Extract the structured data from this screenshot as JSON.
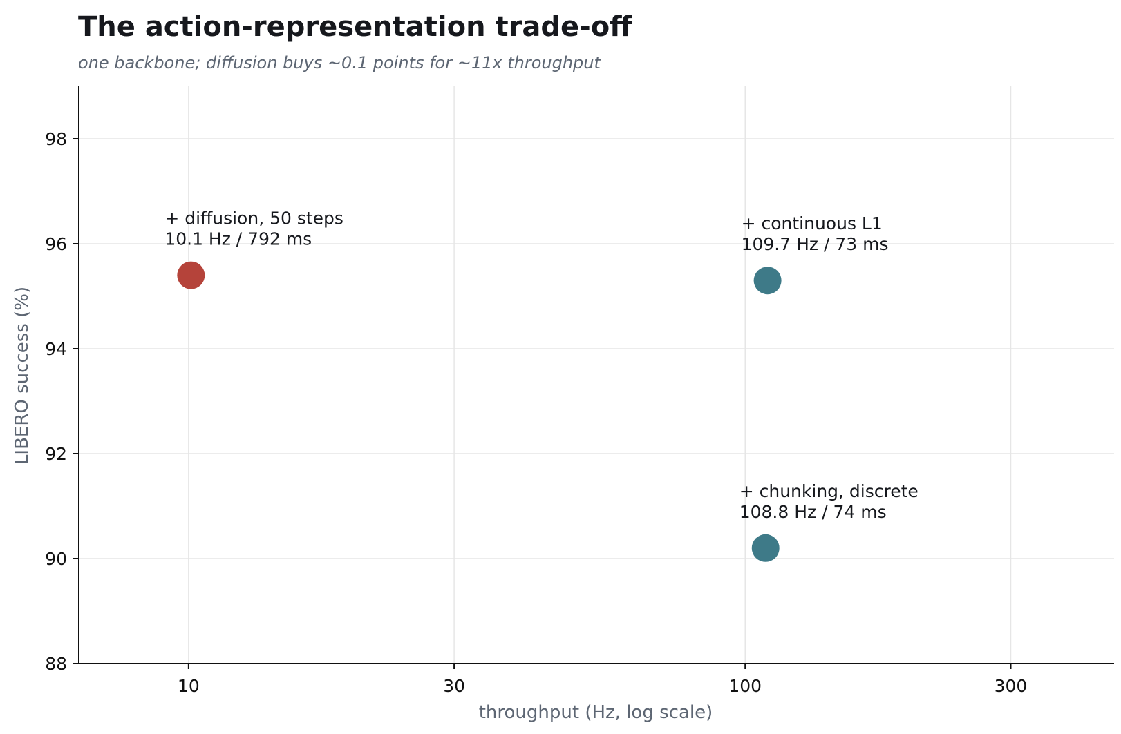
{
  "chart_data": {
    "type": "scatter",
    "title": "The action-representation trade-off",
    "subtitle": "one backbone; diffusion buys ~0.1 points for ~11x throughput",
    "xlabel": "throughput (Hz, log scale)",
    "ylabel": "LIBERO success (%)",
    "x_scale": "log",
    "xlim": [
      6.35,
      460
    ],
    "ylim": [
      88,
      99
    ],
    "x_ticks": [
      10,
      30,
      100,
      300
    ],
    "x_tick_labels": [
      "10",
      "30",
      "100",
      "300"
    ],
    "y_ticks": [
      88,
      90,
      92,
      94,
      96,
      98
    ],
    "y_tick_labels": [
      "88",
      "90",
      "92",
      "94",
      "96",
      "98"
    ],
    "grid": true,
    "legend": "none",
    "points": [
      {
        "x": 10.1,
        "y": 95.4,
        "color": "#b5433a",
        "label_line1": "+ diffusion, 50 steps",
        "label_line2": "10.1 Hz / 792 ms"
      },
      {
        "x": 109.7,
        "y": 95.3,
        "color": "#3e7a88",
        "label_line1": "+ continuous L1",
        "label_line2": "109.7 Hz / 73 ms"
      },
      {
        "x": 108.8,
        "y": 90.2,
        "color": "#3e7a88",
        "label_line1": "+ chunking, discrete",
        "label_line2": "108.8 Hz / 74 ms"
      }
    ]
  }
}
